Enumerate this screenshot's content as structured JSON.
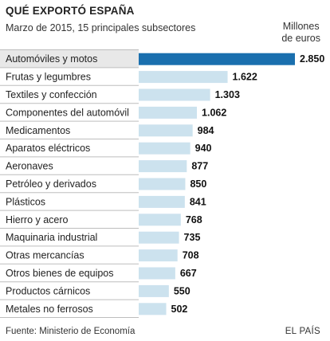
{
  "chart_data": {
    "type": "bar",
    "orientation": "horizontal",
    "title": "QUÉ EXPORTÓ ESPAÑA",
    "subtitle": "Marzo de 2015, 15 principales subsectores",
    "unit_line1": "Millones",
    "unit_line2": "de euros",
    "categories": [
      "Automóviles y motos",
      "Frutas y legumbres",
      "Textiles y confección",
      "Componentes del automóvil",
      "Medicamentos",
      "Aparatos eléctricos",
      "Aeronaves",
      "Petróleo y derivados",
      "Plásticos",
      "Hierro y acero",
      "Maquinaria industrial",
      "Otras mercancías",
      "Otros bienes de equipos",
      "Productos cárnicos",
      "Metales no ferrosos"
    ],
    "values": [
      2850,
      1622,
      1303,
      1062,
      984,
      940,
      877,
      850,
      841,
      768,
      735,
      708,
      667,
      550,
      502
    ],
    "value_labels": [
      "2.850",
      "1.622",
      "1.303",
      "1.062",
      "984",
      "940",
      "877",
      "850",
      "841",
      "768",
      "735",
      "708",
      "667",
      "550",
      "502"
    ],
    "xlim": [
      0,
      2850
    ],
    "highlight_color": "#1a6fae",
    "bar_color": "#cce2ee",
    "grid": false
  },
  "footer": {
    "source": "Fuente: Ministerio de Economía",
    "brand": "EL PAÍS"
  }
}
